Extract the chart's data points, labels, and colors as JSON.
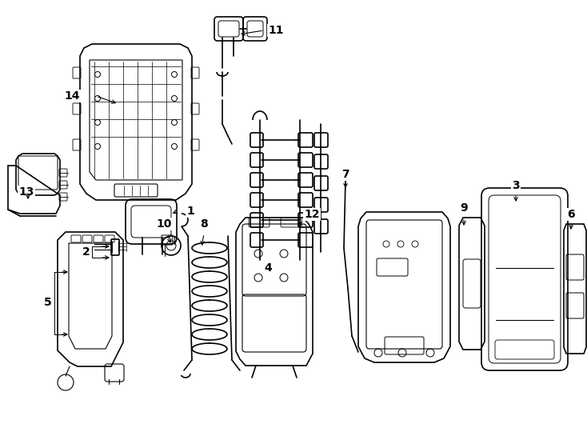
{
  "background_color": "#ffffff",
  "line_color": "#000000",
  "label_color": "#000000",
  "fig_width": 7.34,
  "fig_height": 5.4,
  "dpi": 100
}
